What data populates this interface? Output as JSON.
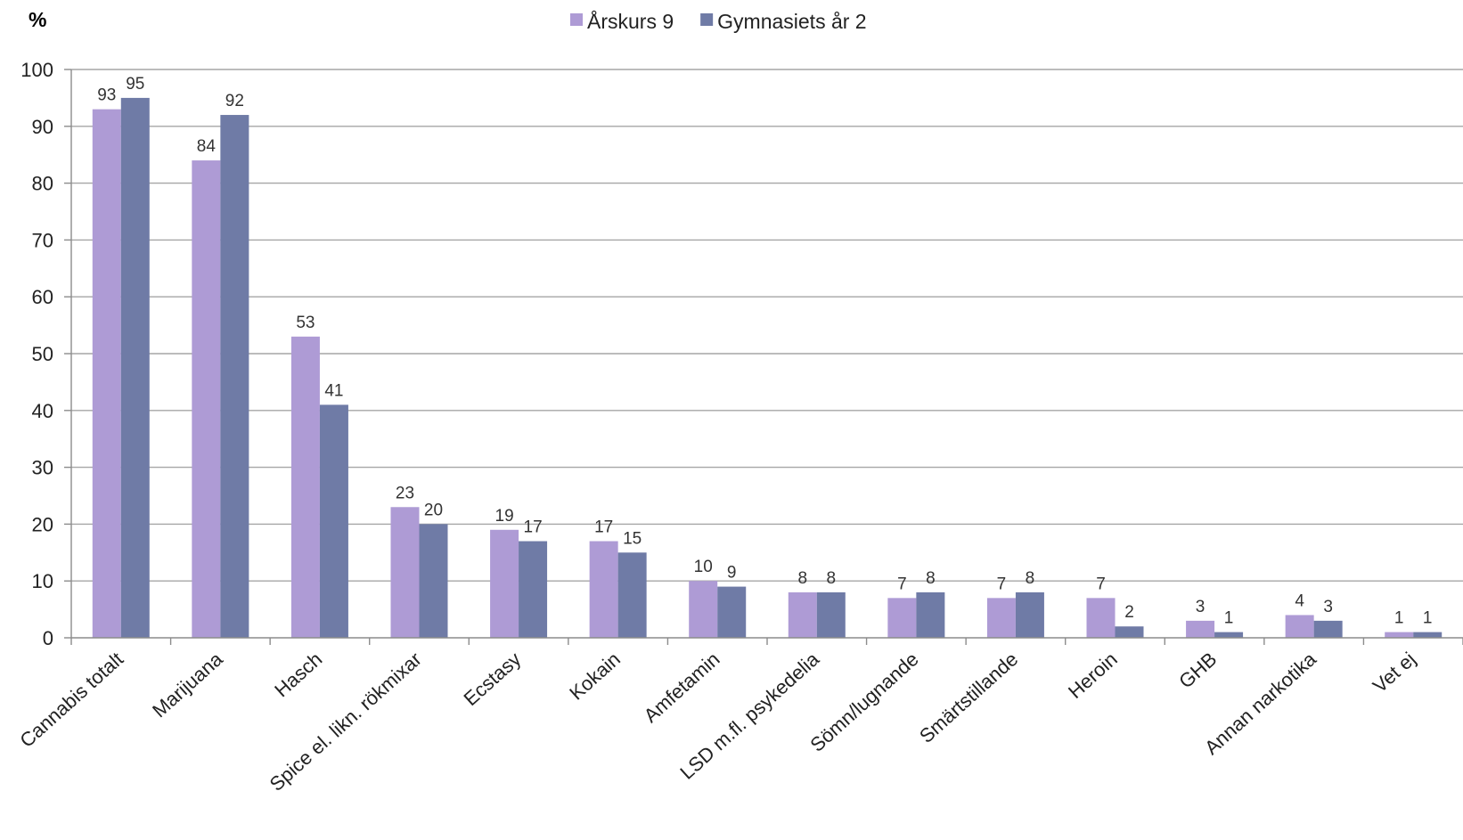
{
  "chart_data": {
    "type": "bar",
    "ylabel": "%",
    "ylim": [
      0,
      100
    ],
    "yticks": [
      0,
      10,
      20,
      30,
      40,
      50,
      60,
      70,
      80,
      90,
      100
    ],
    "grid": true,
    "legend_position": "top",
    "categories": [
      "Cannabis totalt",
      "Marijuana",
      "Hasch",
      "Spice el. likn. rökmixar",
      "Ecstasy",
      "Kokain",
      "Amfetamin",
      "LSD m.fl. psykedelia",
      "Sömn/lugnande",
      "Smärtstillande",
      "Heroin",
      "GHB",
      "Annan narkotika",
      "Vet ej"
    ],
    "series": [
      {
        "name": "Årskurs 9",
        "color": "#AE9BD5",
        "values": [
          93,
          84,
          53,
          23,
          19,
          17,
          10,
          8,
          7,
          7,
          7,
          3,
          4,
          1
        ]
      },
      {
        "name": "Gymnasiets år 2",
        "color": "#6F7BA6",
        "values": [
          95,
          92,
          41,
          20,
          17,
          15,
          9,
          8,
          8,
          8,
          2,
          1,
          3,
          1
        ]
      }
    ]
  },
  "colors": {
    "gridline": "#A6A6A6",
    "axis": "#8C8C8C",
    "background": "#FFFFFF"
  }
}
